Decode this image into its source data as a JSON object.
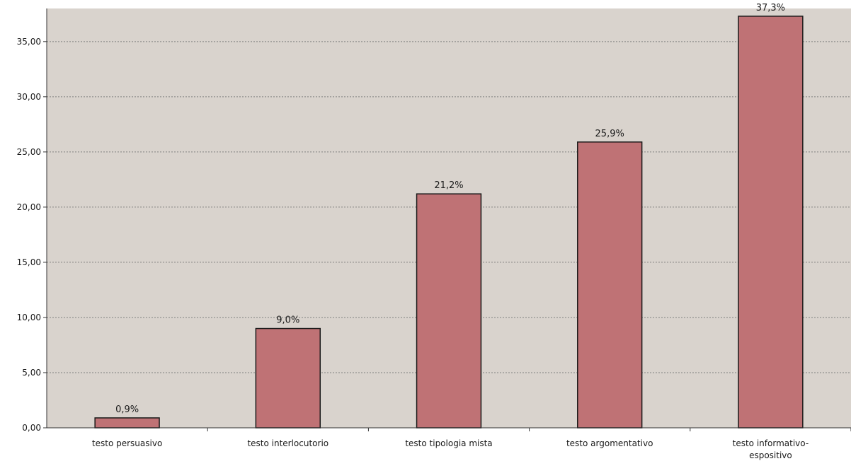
{
  "chart_data": {
    "type": "bar",
    "title": "",
    "xlabel": "",
    "ylabel": "",
    "categories": [
      [
        "testo persuasivo"
      ],
      [
        "testo interlocutorio"
      ],
      [
        "testo tipologia mista"
      ],
      [
        "testo argomentativo"
      ],
      [
        "testo informativo-",
        "espositivo"
      ]
    ],
    "values": [
      0.9,
      9.0,
      21.2,
      25.9,
      37.3
    ],
    "data_labels": [
      "0,9%",
      "9,0%",
      "21,2%",
      "25,9%",
      "37,3%"
    ],
    "ylim": [
      0,
      38
    ],
    "yticks": [
      0,
      5,
      10,
      15,
      20,
      25,
      30,
      35
    ],
    "ytick_labels": [
      "0,00",
      "5,00",
      "10,00",
      "15,00",
      "20,00",
      "25,00",
      "30,00",
      "35,00"
    ],
    "grid": true,
    "legend": "none",
    "colors": {
      "bar": "#bf7275",
      "bar_edge": "#1a1a1a",
      "plot_background": "#d9d3cd",
      "gridline": "#808080",
      "axis": "#333333"
    }
  }
}
